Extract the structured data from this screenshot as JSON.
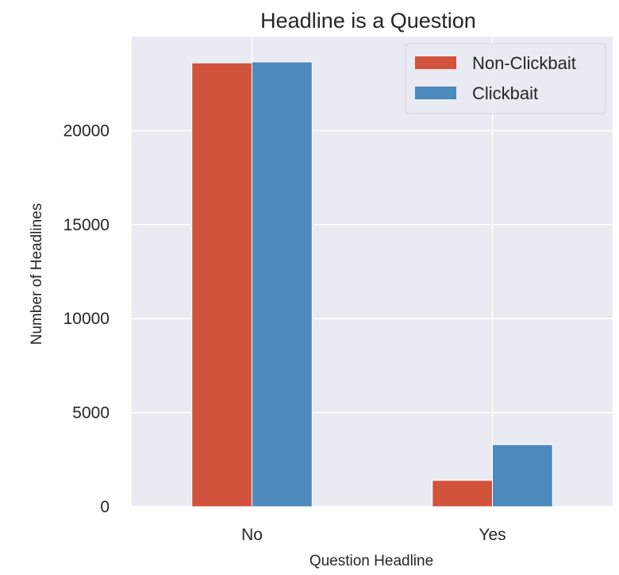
{
  "chart_data": {
    "type": "bar",
    "title": "Headline is a Question",
    "xlabel": "Question Headline",
    "ylabel": "Number of Headlines",
    "categories": [
      "No",
      "Yes"
    ],
    "series": [
      {
        "name": "Non-Clickbait",
        "values": [
          23600,
          1400
        ],
        "color": "#d1533c"
      },
      {
        "name": "Clickbait",
        "values": [
          23650,
          3300
        ],
        "color": "#4c89bd"
      }
    ],
    "ylim": [
      0,
      25000
    ],
    "yticks": [
      0,
      5000,
      10000,
      15000,
      20000
    ],
    "ytick_labels": [
      "0",
      "5000",
      "10000",
      "15000",
      "20000"
    ],
    "grid": true,
    "legend": "top-right",
    "background_color": "#eaeaf2"
  }
}
